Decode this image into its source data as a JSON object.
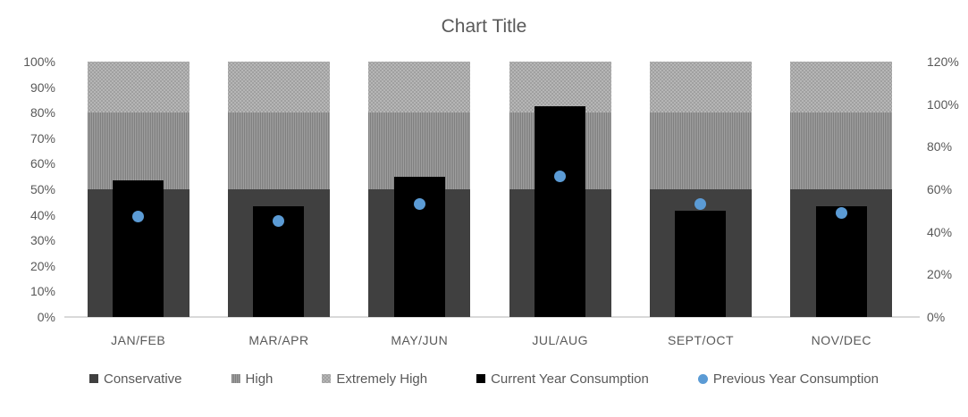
{
  "chart_data": {
    "type": "combo",
    "title": "Chart Title",
    "categories": [
      "JAN/FEB",
      "MAR/APR",
      "MAY/JUN",
      "JUL/AUG",
      "SEPT/OCT",
      "NOV/DEC"
    ],
    "left_axis": {
      "min": 0,
      "max": 100,
      "ticks": [
        {
          "v": 0,
          "label": "0%"
        },
        {
          "v": 10,
          "label": "10%"
        },
        {
          "v": 20,
          "label": "20%"
        },
        {
          "v": 30,
          "label": "30%"
        },
        {
          "v": 40,
          "label": "40%"
        },
        {
          "v": 50,
          "label": "50%"
        },
        {
          "v": 60,
          "label": "60%"
        },
        {
          "v": 70,
          "label": "70%"
        },
        {
          "v": 80,
          "label": "80%"
        },
        {
          "v": 90,
          "label": "90%"
        },
        {
          "v": 100,
          "label": "100%"
        }
      ]
    },
    "right_axis": {
      "min": 0,
      "max": 120,
      "ticks": [
        {
          "v": 0,
          "label": "0%"
        },
        {
          "v": 20,
          "label": "20%"
        },
        {
          "v": 40,
          "label": "40%"
        },
        {
          "v": 60,
          "label": "60%"
        },
        {
          "v": 80,
          "label": "80%"
        },
        {
          "v": 100,
          "label": "100%"
        },
        {
          "v": 120,
          "label": "120%"
        }
      ]
    },
    "series": [
      {
        "name": "Conservative",
        "type": "stacked-bar",
        "axis": "left",
        "color": "#404040",
        "pattern": "solid",
        "values": [
          50,
          50,
          50,
          50,
          50,
          50
        ]
      },
      {
        "name": "High",
        "type": "stacked-bar",
        "axis": "left",
        "color": "#8f8f8f",
        "pattern": "vertical-stripes",
        "values": [
          30,
          30,
          30,
          30,
          30,
          30
        ]
      },
      {
        "name": "Extremely High",
        "type": "stacked-bar",
        "axis": "left",
        "color": "#b3b3b3",
        "pattern": "dots",
        "values": [
          20,
          20,
          20,
          20,
          20,
          20
        ]
      },
      {
        "name": "Current Year Consumption",
        "type": "bar",
        "axis": "right",
        "color": "#000000",
        "pattern": "solid",
        "values": [
          64,
          52,
          66,
          99,
          50,
          52
        ]
      },
      {
        "name": "Previous Year Consumption",
        "type": "scatter",
        "axis": "right",
        "color": "#5B9BD5",
        "pattern": "circle",
        "values": [
          47,
          45,
          53,
          66,
          53,
          49
        ]
      }
    ],
    "legend_position": "bottom",
    "grid": false,
    "colors": {
      "text": "#595959",
      "axis_line": "#D9D9D9",
      "background": "#FFFFFF"
    }
  }
}
